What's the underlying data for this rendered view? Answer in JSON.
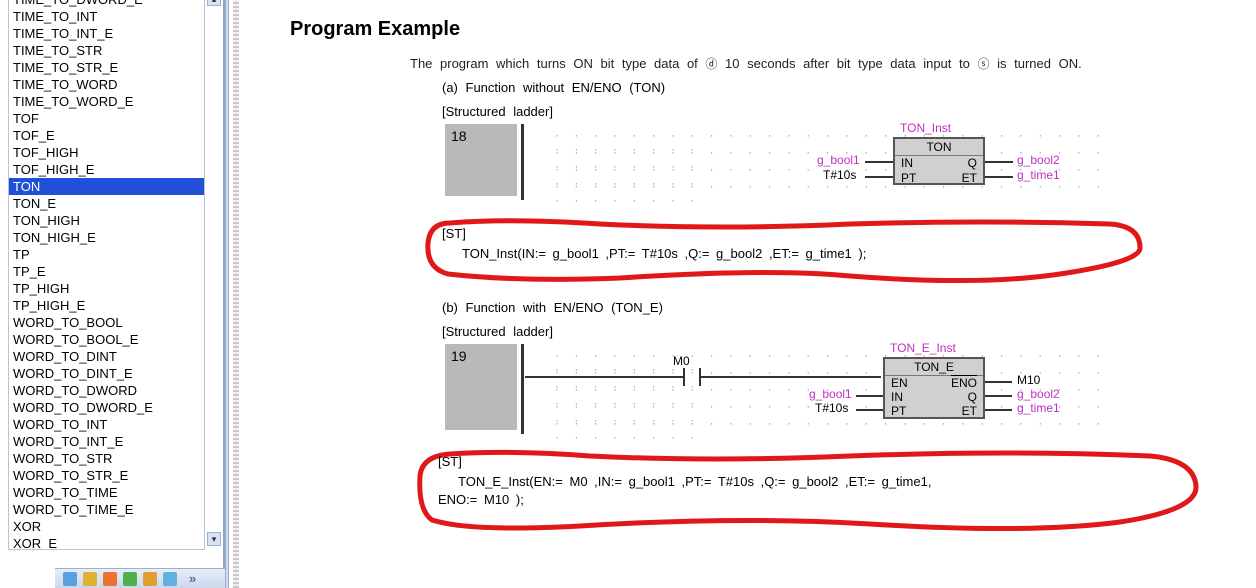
{
  "sidebar": {
    "items": [
      "TIME_TO_DWORD_E",
      "TIME_TO_INT",
      "TIME_TO_INT_E",
      "TIME_TO_STR",
      "TIME_TO_STR_E",
      "TIME_TO_WORD",
      "TIME_TO_WORD_E",
      "TOF",
      "TOF_E",
      "TOF_HIGH",
      "TOF_HIGH_E",
      "TON",
      "TON_E",
      "TON_HIGH",
      "TON_HIGH_E",
      "TP",
      "TP_E",
      "TP_HIGH",
      "TP_HIGH_E",
      "WORD_TO_BOOL",
      "WORD_TO_BOOL_E",
      "WORD_TO_DINT",
      "WORD_TO_DINT_E",
      "WORD_TO_DWORD",
      "WORD_TO_DWORD_E",
      "WORD_TO_INT",
      "WORD_TO_INT_E",
      "WORD_TO_STR",
      "WORD_TO_STR_E",
      "WORD_TO_TIME",
      "WORD_TO_TIME_E",
      "XOR",
      "XOR_E"
    ],
    "selected_index": 11,
    "toolbar_more": "»",
    "icon_colors": [
      "#5aa0e0",
      "#e0b030",
      "#f07030",
      "#50b050",
      "#e0a030",
      "#60b0e0"
    ]
  },
  "content": {
    "title": "Program  Example",
    "intro_pre": "The  program  which  turns  ON  bit  type  data  of ",
    "intro_mid": "  10  seconds  after  bit  type  data  input  to ",
    "intro_post": "  is  turned  ON.",
    "circle_d": "ⓓ",
    "circle_s": "ⓢ",
    "a_heading": "(a)   Function  without  EN/ENO  (TON)",
    "a_structured": "[Structured  ladder]",
    "a_rung": "18",
    "a_inst": "TON_Inst",
    "a_block": {
      "title": "TON",
      "in": "IN",
      "q": "Q",
      "pt": "PT",
      "et": "ET"
    },
    "a_left1": "g_bool1",
    "a_left2": "T#10s",
    "a_right1": "g_bool2",
    "a_right2": "g_time1",
    "st_label": "[ST]",
    "st_a_code": "TON_Inst(IN:=  g_bool1  ,PT:=  T#10s  ,Q:=  g_bool2  ,ET:=  g_time1  );",
    "b_heading": "(b)   Function  with  EN/ENO  (TON_E)",
    "b_structured": "[Structured  ladder]",
    "b_rung": "19",
    "b_m0": "M0",
    "b_inst": "TON_E_Inst",
    "b_block": {
      "title": "TON_E",
      "en": "EN",
      "eno": "ENO",
      "in": "IN",
      "q": "Q",
      "pt": "PT",
      "et": "ET"
    },
    "b_left1": "g_bool1",
    "b_left2": "T#10s",
    "b_right0": "M10",
    "b_right1": "g_bool2",
    "b_right2": "g_time1",
    "st_b_code_l1": "TON_E_Inst(EN:=  M0  ,IN:=  g_bool1  ,PT:=  T#10s  ,Q:=  g_bool2  ,ET:=  g_time1,",
    "st_b_code_l2": "ENO:=  M10  );"
  },
  "style": {
    "highlight_stroke": "#e01818",
    "highlight_width": 5,
    "magenta": "#c030c0",
    "select_bg": "#2050d8"
  }
}
